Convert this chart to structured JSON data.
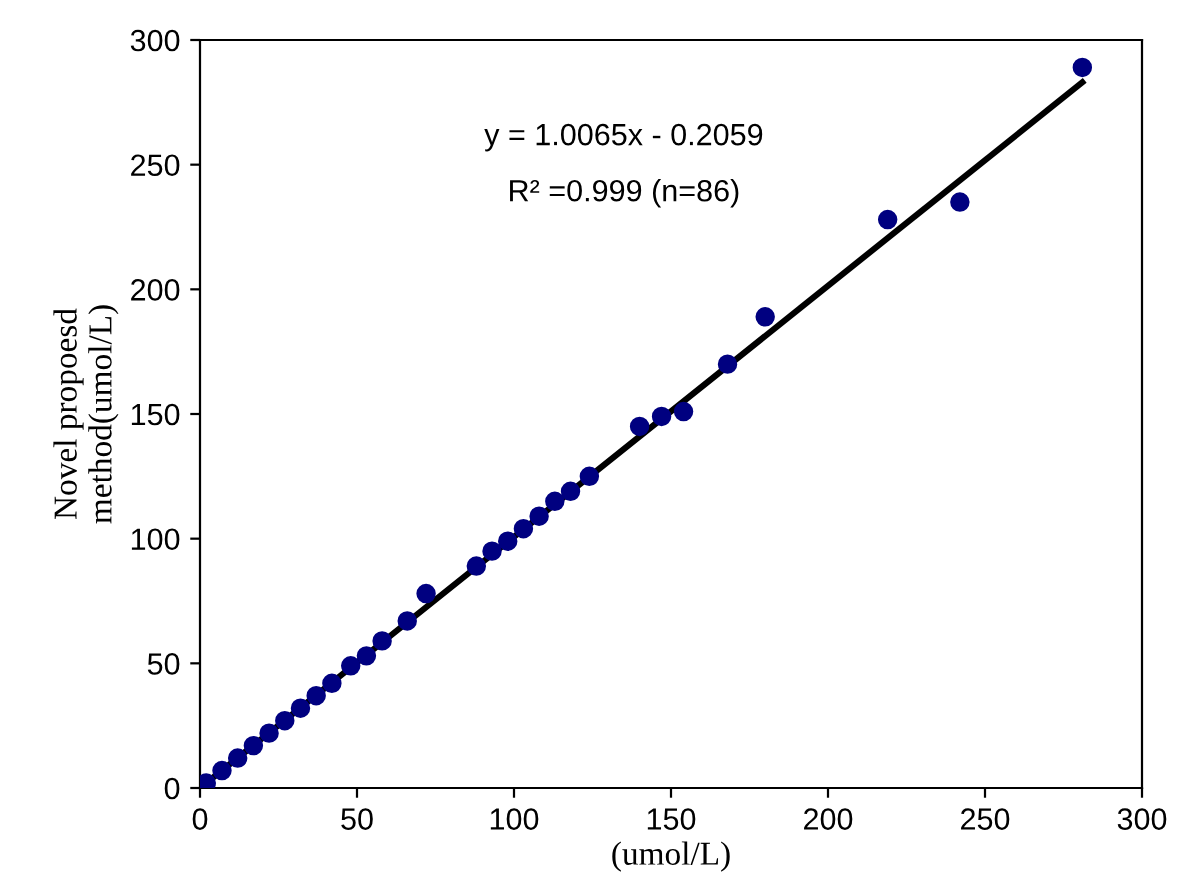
{
  "chart_data": {
    "type": "scatter",
    "xlabel": "(umol/L)",
    "ylabel": "Novel propoesd\nmethod(umol/L)",
    "xlim": [
      0,
      300
    ],
    "ylim": [
      0,
      300
    ],
    "xticks": [
      0,
      50,
      100,
      150,
      200,
      250,
      300
    ],
    "yticks": [
      0,
      50,
      100,
      150,
      200,
      250,
      300
    ],
    "grid": false,
    "annotations": [
      "y = 1.0065x - 0.2059",
      "R² =0.999 (n=86)"
    ],
    "series": [
      {
        "color": "#000080",
        "marker": "circle",
        "x": [
          2,
          7,
          12,
          17,
          22,
          27,
          32,
          37,
          42,
          48,
          53,
          58,
          66,
          72,
          88,
          93,
          98,
          103,
          108,
          113,
          118,
          124,
          140,
          147,
          154,
          168,
          180,
          219,
          242,
          281
        ],
        "values": [
          2,
          7,
          12,
          17,
          22,
          27,
          32,
          37,
          42,
          49,
          53,
          59,
          67,
          78,
          89,
          95,
          99,
          104,
          109,
          115,
          119,
          125,
          145,
          149,
          151,
          170,
          189,
          228,
          235,
          289
        ]
      },
      {
        "type": "line",
        "color": "#000000",
        "line_style": "solid",
        "x": [
          1,
          281
        ],
        "values": [
          1,
          283
        ]
      }
    ]
  }
}
